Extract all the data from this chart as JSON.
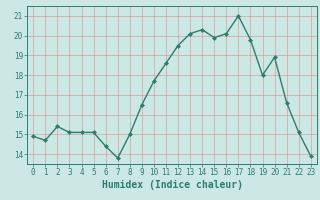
{
  "x": [
    0,
    1,
    2,
    3,
    4,
    5,
    6,
    7,
    8,
    9,
    10,
    11,
    12,
    13,
    14,
    15,
    16,
    17,
    18,
    19,
    20,
    21,
    22,
    23
  ],
  "y": [
    14.9,
    14.7,
    15.4,
    15.1,
    15.1,
    15.1,
    14.4,
    13.8,
    15.0,
    16.5,
    17.7,
    18.6,
    19.5,
    20.1,
    20.3,
    19.9,
    20.1,
    21.0,
    19.8,
    18.0,
    18.9,
    16.6,
    15.1,
    13.9
  ],
  "line_color": "#2d7d6e",
  "marker": "D",
  "marker_size": 2.0,
  "line_width": 1.0,
  "xlabel": "Humidex (Indice chaleur)",
  "xlabel_fontsize": 7,
  "ylim": [
    13.5,
    21.5
  ],
  "yticks": [
    14,
    15,
    16,
    17,
    18,
    19,
    20,
    21
  ],
  "xticks": [
    0,
    1,
    2,
    3,
    4,
    5,
    6,
    7,
    8,
    9,
    10,
    11,
    12,
    13,
    14,
    15,
    16,
    17,
    18,
    19,
    20,
    21,
    22,
    23
  ],
  "bg_color": "#cce8e4",
  "grid_color": "#e08080",
  "grid_alpha": 0.7,
  "tick_fontsize": 5.5
}
